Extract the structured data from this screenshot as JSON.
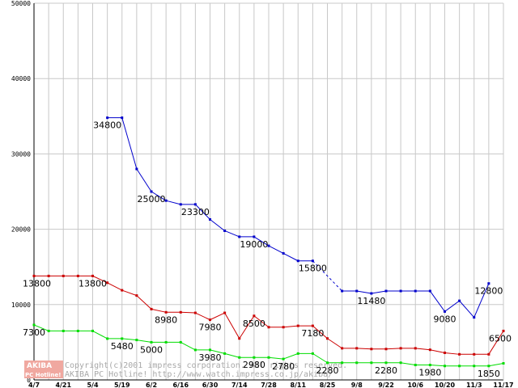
{
  "chart_data": {
    "type": "line",
    "title": "",
    "xlabel": "",
    "ylabel": "",
    "ylim": [
      0,
      50000
    ],
    "grid": true,
    "legend": "none",
    "y_ticks": [
      {
        "value": 0,
        "label": "0"
      },
      {
        "value": 10000,
        "label": "10000"
      },
      {
        "value": 20000,
        "label": "20000"
      },
      {
        "value": 30000,
        "label": "30000"
      },
      {
        "value": 40000,
        "label": "40000"
      },
      {
        "value": 50000,
        "label": "50000"
      }
    ],
    "x_ticks": [
      {
        "index": 0,
        "label": "4/7"
      },
      {
        "index": 2,
        "label": "4/21"
      },
      {
        "index": 4,
        "label": "5/4"
      },
      {
        "index": 6,
        "label": "5/19"
      },
      {
        "index": 8,
        "label": "6/2"
      },
      {
        "index": 10,
        "label": "6/16"
      },
      {
        "index": 12,
        "label": "6/30"
      },
      {
        "index": 14,
        "label": "7/14"
      },
      {
        "index": 16,
        "label": "7/28"
      },
      {
        "index": 18,
        "label": "8/11"
      },
      {
        "index": 20,
        "label": "8/25"
      },
      {
        "index": 22,
        "label": "9/8"
      },
      {
        "index": 24,
        "label": "9/22"
      },
      {
        "index": 26,
        "label": "10/6"
      },
      {
        "index": 28,
        "label": "10/20"
      },
      {
        "index": 30,
        "label": "11/3"
      },
      {
        "index": 32,
        "label": "11/17"
      }
    ],
    "x_count": 33,
    "series": [
      {
        "color": "#0000cc",
        "values": [
          null,
          null,
          null,
          null,
          null,
          34800,
          34800,
          28000,
          25000,
          23800,
          23300,
          23300,
          21300,
          19800,
          19000,
          19000,
          17800,
          16800,
          15800,
          15800,
          null,
          11800,
          11800,
          11480,
          11800,
          11800,
          11800,
          11800,
          9080,
          10500,
          8300,
          12800
        ],
        "dashed_segments": [
          [
            19,
            21
          ]
        ]
      },
      {
        "color": "#cc0000",
        "values": [
          13800,
          13800,
          13800,
          13800,
          13800,
          12900,
          11900,
          11200,
          9400,
          8980,
          8980,
          8900,
          7980,
          8900,
          5500,
          8500,
          7000,
          7000,
          7180,
          7180,
          5500,
          4200,
          4200,
          4100,
          4100,
          4200,
          4200,
          4000,
          3600,
          3400,
          3400,
          3400,
          6500
        ]
      },
      {
        "color": "#00dd00",
        "values": [
          7300,
          6500,
          6500,
          6500,
          6500,
          5480,
          5480,
          5300,
          5000,
          5000,
          5000,
          3980,
          3980,
          3500,
          2980,
          2980,
          2980,
          2780,
          3500,
          3500,
          2280,
          2280,
          2280,
          2280,
          2280,
          2280,
          1980,
          1980,
          1850,
          1850,
          1850,
          1850,
          2200
        ]
      }
    ],
    "data_labels": [
      {
        "text": "34800",
        "series": 0,
        "index": 5
      },
      {
        "text": "25000",
        "series": 0,
        "index": 8
      },
      {
        "text": "23300",
        "series": 0,
        "index": 11
      },
      {
        "text": "19000",
        "series": 0,
        "index": 15
      },
      {
        "text": "15800",
        "series": 0,
        "index": 19
      },
      {
        "text": "11480",
        "series": 0,
        "index": 23
      },
      {
        "text": "9080",
        "series": 0,
        "index": 28
      },
      {
        "text": "12800",
        "series": 0,
        "index": 31
      },
      {
        "text": "13800",
        "series": 1,
        "index": 0
      },
      {
        "text": "13800",
        "series": 1,
        "index": 4
      },
      {
        "text": "8980",
        "series": 1,
        "index": 9
      },
      {
        "text": "7980",
        "series": 1,
        "index": 12
      },
      {
        "text": "8500",
        "series": 1,
        "index": 15
      },
      {
        "text": "7180",
        "series": 1,
        "index": 19
      },
      {
        "text": "6500",
        "series": 1,
        "index": 32
      },
      {
        "text": "7300",
        "series": 2,
        "index": 0
      },
      {
        "text": "5480",
        "series": 2,
        "index": 6
      },
      {
        "text": "5000",
        "series": 2,
        "index": 8
      },
      {
        "text": "3980",
        "series": 2,
        "index": 12
      },
      {
        "text": "2980",
        "series": 2,
        "index": 15
      },
      {
        "text": "2780",
        "series": 2,
        "index": 17
      },
      {
        "text": "2280",
        "series": 2,
        "index": 20
      },
      {
        "text": "2280",
        "series": 2,
        "index": 24
      },
      {
        "text": "1980",
        "series": 2,
        "index": 27
      },
      {
        "text": "1850",
        "series": 2,
        "index": 31
      }
    ]
  },
  "watermark": {
    "logo_top": "AKIBA",
    "logo_bottom": "PC Hotline!",
    "line1": "Copyright(c)2001 impress corporation. All rights reserved.",
    "line2": "AKIBA PC Hotline!  http://www.watch.impress.co.jp/akiba/"
  },
  "colors": {
    "grid": "#c8c8c8",
    "axis": "#000000",
    "logo_bg": "#f0a8a0"
  }
}
